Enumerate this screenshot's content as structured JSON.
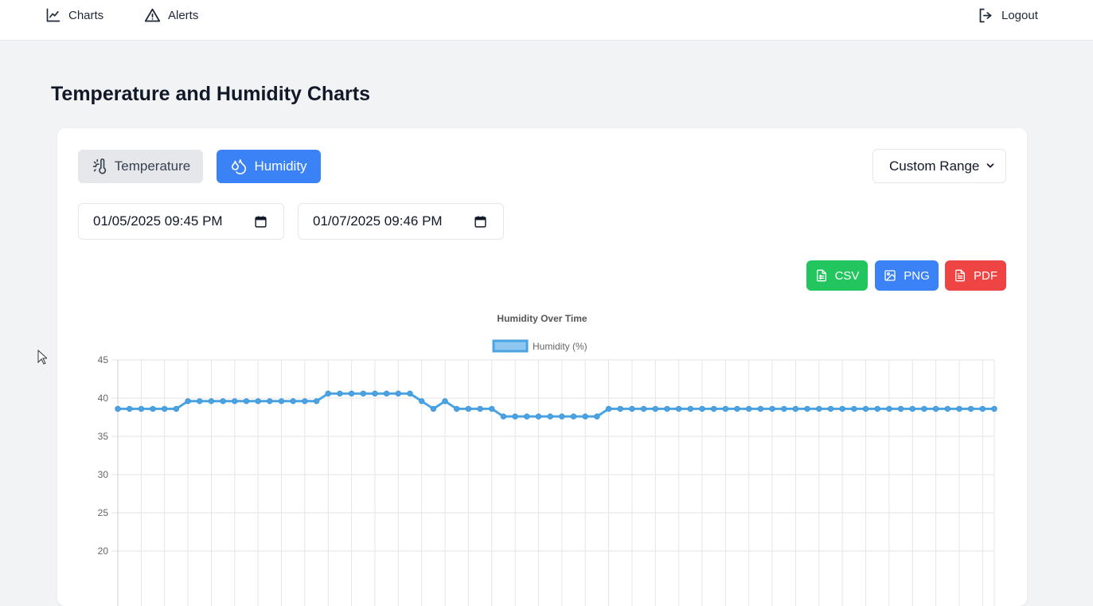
{
  "nav": {
    "charts_label": "Charts",
    "alerts_label": "Alerts",
    "logout_label": "Logout"
  },
  "page": {
    "title": "Temperature and Humidity Charts"
  },
  "controls": {
    "temperature_tab": "Temperature",
    "humidity_tab": "Humidity",
    "range_select_value": "Custom Range",
    "start_datetime": "01/05/2025 09:45 PM",
    "end_datetime": "01/07/2025 09:46 PM",
    "csv_label": "CSV",
    "png_label": "PNG",
    "pdf_label": "PDF"
  },
  "colors": {
    "accent": "#3b82f6",
    "csv": "#22c55e",
    "pdf": "#ef4444",
    "series": "#4ba3e3"
  },
  "chart_data": {
    "type": "line",
    "title": "Humidity Over Time",
    "xlabel": "",
    "ylabel": "",
    "ylim": [
      15,
      45
    ],
    "yticks": [
      45,
      40,
      35,
      30,
      25,
      20
    ],
    "grid": true,
    "legend_position": "top",
    "series": [
      {
        "name": "Humidity (%)",
        "values": [
          38.6,
          38.6,
          38.6,
          38.6,
          38.6,
          38.6,
          39.6,
          39.6,
          39.6,
          39.6,
          39.6,
          39.6,
          39.6,
          39.6,
          39.6,
          39.6,
          39.6,
          39.6,
          40.6,
          40.6,
          40.6,
          40.6,
          40.6,
          40.6,
          40.6,
          40.6,
          39.6,
          38.6,
          39.6,
          38.6,
          38.6,
          38.6,
          38.6,
          37.6,
          37.6,
          37.6,
          37.6,
          37.6,
          37.6,
          37.6,
          37.6,
          37.6,
          38.6,
          38.6,
          38.6,
          38.6,
          38.6,
          38.6,
          38.6,
          38.6,
          38.6,
          38.6,
          38.6,
          38.6,
          38.6,
          38.6,
          38.6,
          38.6,
          38.6,
          38.6,
          38.6,
          38.6,
          38.6,
          38.6,
          38.6,
          38.6,
          38.6,
          38.6,
          38.6,
          38.6,
          38.6,
          38.6,
          38.6,
          38.6,
          38.6,
          38.6
        ]
      }
    ]
  }
}
